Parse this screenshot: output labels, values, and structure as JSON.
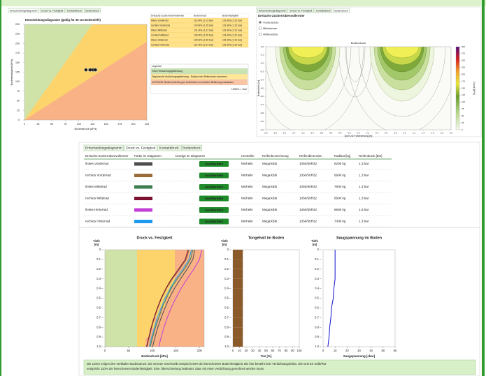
{
  "decision_panel": {
    "tabs": [
      "Entscheidungsdiagramm",
      "Druck vs. Festigkeit",
      "Kontaktdruck",
      "Bodendruck"
    ],
    "chart": {
      "type": "scatter",
      "title": "Entscheidungsdiagramm (gültig für 35 cm Bodentiefe)",
      "x_label": "Bodendruck (kPa)",
      "y_label": "Bodenfestigkeit (kPa)",
      "xlim": [
        0,
        225
      ],
      "ylim": [
        0,
        250
      ],
      "xticks": [
        0,
        25,
        50,
        75,
        100,
        125,
        150,
        175,
        200,
        225
      ],
      "yticks": [
        0,
        25,
        50,
        75,
        100,
        125,
        150,
        175,
        200,
        225,
        250
      ],
      "x": [
        113,
        120,
        131,
        126,
        130,
        121
      ],
      "y": [
        131,
        131,
        131,
        131,
        131,
        131
      ],
      "color": "#1a1a1a"
    }
  },
  "summary_table": {
    "header": [
      "Dreiachs-Zuckerrübenvollernter",
      "Bodendruck",
      "Bodenfestigkeit"
    ],
    "rows": [
      [
        "linkes Vorderrad",
        "113 kPa (1.13 bar)",
        "131 kPa (1.31 bar)"
      ],
      [
        "rechtes Vorderrad",
        "120 kPa (1.20 bar)",
        "131 kPa (1.31 bar)"
      ],
      [
        "linkes Mittelrad",
        "131 kPa (1.31 bar)",
        "131 kPa (1.31 bar)"
      ],
      [
        "rechtes Mittelrad",
        "126 kPa (1.26 bar)",
        "131 kPa (1.31 bar)"
      ],
      [
        "linkes Hinterrad",
        "130 kPa (1.30 bar)",
        "131 kPa (1.31 bar)"
      ],
      [
        "rechtes Hinterrad",
        "121 kPa (1.21 bar)",
        "131 kPa (1.31 bar)"
      ]
    ]
  },
  "legend": {
    "title": "Legende",
    "items": [
      "Keine Verdichtungsgefährdung",
      "Beginnende Verdichtungsgefährdung - Radlast oder Reifendruck reduzieren",
      "ACHTUNG: Bodenverdichtung im Unterboden zu erwarten! Befahrung unterlassen"
    ],
    "colors": [
      "#c9e3b3",
      "#ffe699",
      "#f8c4a4"
    ],
    "note": "100kPa = 1bar"
  },
  "contour_panel": {
    "tabs": [
      "Entscheidungsdiagramm",
      "Druck vs. Festigkeit",
      "Kontaktdruck",
      "Bodendruck"
    ],
    "machine": "Dreiachs-Zuckerrübenvollernter",
    "axles": [
      "Vorderachse",
      "Mittelachse",
      "Hinterachse"
    ],
    "selected_axle": 0,
    "chart": {
      "type": "contour",
      "title": "Bodendruck",
      "x_label": "Quer zur Fahrtrichtung [m]",
      "y_label": "Bodentiefe [m]",
      "xlim": [
        -2,
        2
      ],
      "ylim": [
        -1,
        0
      ],
      "xticks": [
        {
          "value": -2,
          "label": "-2.0"
        },
        -1.8,
        -1.6,
        -1.4,
        -1.2,
        {
          "value": -1,
          "label": "-1.0"
        },
        -0.8,
        -0.6,
        -0.4,
        -0.2,
        {
          "value": 0,
          "label": "0.0"
        },
        0.2,
        0.4,
        0.6,
        0.8,
        {
          "value": 1,
          "label": "1.0"
        },
        1.2,
        1.4,
        1.6,
        1.8,
        {
          "value": 2,
          "label": "2.0"
        }
      ],
      "yticks": [
        {
          "value": 0,
          "label": "0.0"
        },
        -0.1,
        -0.2,
        -0.3,
        -0.4,
        -0.5,
        -0.6,
        -0.7,
        -0.8,
        -0.9,
        {
          "value": -1,
          "label": "-1.0"
        }
      ],
      "colorbar_label": "Druck [kPa]",
      "colorbar_lim": [
        0,
        300
      ],
      "colorbar_ticks": [
        0,
        25,
        50,
        75,
        100,
        125,
        150,
        175,
        200,
        225,
        250,
        275,
        300
      ]
    }
  },
  "tires_panel": {
    "tabs": [
      "Entscheidungsdiagramm",
      "Druck vs. Festigkeit",
      "Kontaktdruck",
      "Bodendruck"
    ],
    "header": [
      "Dreiachs-Zuckerrübenvollernter",
      "Farbe im Diagramm",
      "Anzeige im Diagramm",
      "Hersteller",
      "Reifenbezeichnung",
      "Reifendimension",
      "Radlast [kg]",
      "Reifendruck [bar]"
    ],
    "rows": [
      {
        "name": "linkes Vorderrad",
        "color": "#4d4d4d",
        "button": "Ausblenden",
        "maker": "Michelin",
        "tire": "MegaXBib",
        "dimension": "1050/50R32",
        "load": "8200 kg",
        "pressure": "1.3 bar"
      },
      {
        "name": "rechtes Vorderrad",
        "color": "#9c6b3c",
        "button": "Ausblenden",
        "maker": "Michelin",
        "tire": "MegaXBib",
        "dimension": "1050/50R32",
        "load": "6600 kg",
        "pressure": "1.3 bar"
      },
      {
        "name": "linkes Mittelrad",
        "color": "#3d7f4f",
        "button": "Ausblenden",
        "maker": "Michelin",
        "tire": "MegaXBib",
        "dimension": "1050/50R32",
        "load": "7600 kg",
        "pressure": "1.3 bar"
      },
      {
        "name": "rechtes Mittelrad",
        "color": "#7b1030",
        "button": "Ausblenden",
        "maker": "Michelin",
        "tire": "MegaXBib",
        "dimension": "1050/50R32",
        "load": "6500 kg",
        "pressure": "1.3 bar"
      },
      {
        "name": "linkes Hinterrad",
        "color": "#c23fd6",
        "button": "Ausblenden",
        "maker": "Michelin",
        "tire": "MegaXBib",
        "dimension": "1050/50R32",
        "load": "8600 kg",
        "pressure": "1.6 bar"
      },
      {
        "name": "rechtes Hinterrad",
        "color": "#1e9bf0",
        "button": "Ausblenden",
        "maker": "Michelin",
        "tire": "MegaXBib",
        "dimension": "1050/50R32",
        "load": "7300 kg",
        "pressure": "1.3 bar"
      }
    ]
  },
  "depth_charts": [
    {
      "type": "line",
      "title": "Druck vs. Festigkeit",
      "x_label": "Bodendruck [kPa]",
      "y_label": [
        "Tiefe",
        "[m]"
      ],
      "xlim": [
        0,
        210
      ],
      "ylim": [
        0,
        1
      ],
      "xticks": [
        0,
        50,
        100,
        150,
        200
      ],
      "yticks": [
        0,
        0.1,
        0.2,
        0.3,
        0.4,
        0.5,
        0.6,
        0.7,
        0.8,
        0.9,
        {
          "value": 1,
          "label": "1.0"
        }
      ],
      "y": [
        0,
        0.1,
        0.2,
        0.3,
        0.4,
        0.5,
        0.6,
        0.7,
        0.8,
        0.9,
        1
      ],
      "series": [
        {
          "color": "#4d4d4d",
          "values": [
            190,
            186,
            174,
            160,
            147,
            136,
            127,
            119,
            112,
            106,
            101
          ]
        },
        {
          "color": "#9c6b3c",
          "values": [
            178,
            172,
            158,
            143,
            130,
            120,
            112,
            105,
            99,
            94,
            89
          ]
        },
        {
          "color": "#3d7f4f",
          "values": [
            186,
            181,
            168,
            153,
            140,
            130,
            121,
            114,
            107,
            101,
            96
          ]
        },
        {
          "color": "#7b1030",
          "values": [
            176,
            170,
            156,
            141,
            129,
            119,
            111,
            104,
            98,
            93,
            88
          ]
        },
        {
          "color": "#c23fd6",
          "values": [
            205,
            200,
            188,
            174,
            161,
            150,
            140,
            132,
            125,
            119,
            114
          ]
        },
        {
          "color": "#1e9bf0",
          "values": [
            183,
            178,
            165,
            150,
            138,
            127,
            119,
            111,
            105,
            99,
            94
          ]
        }
      ]
    },
    {
      "type": "bar",
      "title": "Tongehalt im Boden",
      "x_label": "Ton [%]",
      "y_label": [
        "Tiefe",
        "[m]"
      ],
      "xlim": [
        0,
        100
      ],
      "ylim": [
        0,
        1
      ],
      "xticks": [
        0,
        10,
        20,
        30,
        40,
        50,
        60,
        70,
        80,
        90,
        100
      ],
      "yticks": [
        0,
        0.1,
        0.2,
        0.3,
        0.4,
        0.5,
        0.6,
        0.7,
        0.8,
        0.9,
        {
          "value": 1,
          "label": "1.0"
        }
      ],
      "y": [
        0,
        0.1,
        0.2,
        0.3,
        0.4,
        0.5,
        0.6,
        0.7,
        0.8,
        0.9
      ],
      "values": [
        15,
        15,
        15,
        15,
        15,
        15,
        15,
        15,
        15,
        15
      ],
      "color": "#8b5a2b"
    },
    {
      "type": "line",
      "title": "Saugspannung im Boden",
      "x_label": "Saugspannung [cbar]",
      "y_label": [
        "Tiefe",
        "[m]"
      ],
      "xlim": [
        0,
        60
      ],
      "ylim": [
        0,
        1
      ],
      "xticks": [
        0,
        10,
        20,
        30,
        40,
        50,
        60
      ],
      "yticks": [
        0,
        0.1,
        0.2,
        0.3,
        0.4,
        0.5,
        0.6,
        0.7,
        0.8,
        0.9,
        {
          "value": 1,
          "label": "1.0"
        }
      ],
      "y": [
        0,
        0.1,
        0.2,
        0.3,
        0.4,
        0.5,
        0.6,
        0.7,
        0.8,
        0.9,
        1
      ],
      "series": [
        {
          "color": "#1010d0",
          "values": [
            10,
            10,
            10,
            10,
            9,
            8.5,
            7,
            6.5,
            5.5,
            5,
            4
          ]
        }
      ]
    }
  ],
  "note_lines": [
    "Die Linien zeigen den vertikalen Bodendruck. Die Grenze Grün/Gelb entspricht 50% der berechneten Bodenfestigkeit. Bis hier besteht kein Verdichtungsrisiko. Die Grenze Gelb/Rot",
    "entspricht 110% der berechneten Bodenfestigkeit. Eine Überschreitung bedeutet, dass mit einer Verdichtung gerechnet werden muss."
  ]
}
